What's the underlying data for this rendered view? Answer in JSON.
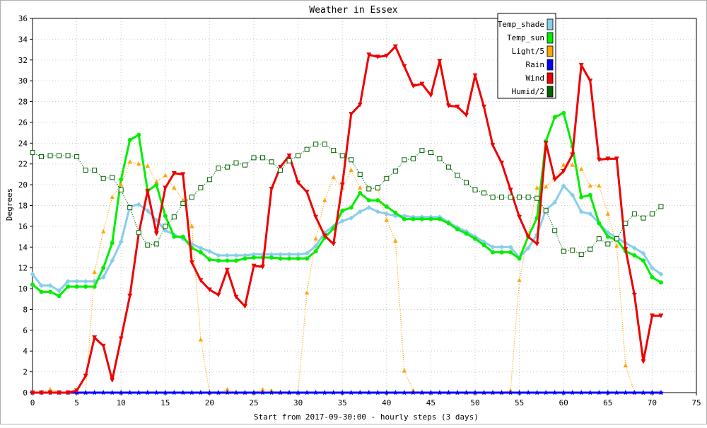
{
  "chart_data": {
    "type": "line",
    "title": "Weather in Essex",
    "xlabel": "Start from 2017-09-30:00 - hourly steps (3 days)",
    "ylabel": "Degrees",
    "xlim": [
      0,
      75
    ],
    "ylim": [
      0,
      36
    ],
    "xticks": [
      0,
      5,
      10,
      15,
      20,
      25,
      30,
      35,
      40,
      45,
      50,
      55,
      60,
      65,
      70,
      75
    ],
    "yticks": [
      0,
      2,
      4,
      6,
      8,
      10,
      12,
      14,
      16,
      18,
      20,
      22,
      24,
      26,
      28,
      30,
      32,
      34,
      36
    ],
    "grid": true,
    "legend_position": "top-right",
    "series": [
      {
        "name": "Temp_shade",
        "color": "#87ceeb",
        "marker": "diamond",
        "line": "solid",
        "values": [
          11.4,
          10.3,
          10.3,
          9.8,
          10.7,
          10.7,
          10.7,
          10.7,
          11.1,
          12.7,
          14.5,
          17.9,
          18.1,
          17.5,
          16.6,
          15.6,
          15.2,
          14.8,
          14.3,
          13.9,
          13.6,
          13.2,
          13.2,
          13.2,
          13.2,
          13.3,
          13.3,
          13.3,
          13.3,
          13.3,
          13.3,
          13.4,
          14.1,
          15.4,
          16.0,
          16.5,
          16.8,
          17.4,
          17.8,
          17.4,
          17.2,
          17.0,
          17.0,
          16.9,
          16.9,
          16.9,
          16.9,
          16.4,
          15.9,
          15.5,
          15.0,
          14.5,
          14.0,
          14.0,
          14.0,
          13.0,
          13.9,
          15.2,
          17.6,
          18.3,
          19.9,
          19.0,
          17.4,
          17.2,
          16.3,
          15.4,
          14.9,
          14.4,
          13.9,
          13.4,
          12.0,
          11.4
        ]
      },
      {
        "name": "Temp_sun",
        "color": "#00ee00",
        "marker": "circle",
        "line": "solid",
        "values": [
          10.4,
          9.7,
          9.7,
          9.3,
          10.2,
          10.2,
          10.2,
          10.2,
          12.0,
          14.4,
          20.5,
          24.3,
          24.8,
          19.4,
          20.0,
          17.0,
          15.0,
          15.0,
          13.9,
          13.5,
          12.8,
          12.7,
          12.7,
          12.7,
          12.9,
          13.0,
          13.0,
          13.0,
          12.9,
          12.9,
          12.9,
          12.9,
          13.6,
          14.9,
          15.8,
          17.5,
          17.8,
          19.2,
          18.5,
          18.5,
          17.9,
          17.3,
          16.7,
          16.7,
          16.7,
          16.7,
          16.7,
          16.3,
          15.7,
          15.3,
          14.8,
          14.2,
          13.5,
          13.5,
          13.5,
          12.9,
          15.0,
          16.8,
          24.2,
          26.5,
          26.9,
          23.7,
          18.8,
          19.0,
          16.3,
          15.0,
          14.7,
          13.6,
          13.2,
          12.7,
          11.1,
          10.6
        ]
      },
      {
        "name": "Light/5",
        "color": "#ffa500",
        "marker": "triangle-up",
        "line": "dotted",
        "values": [
          0,
          0,
          0.3,
          0,
          0,
          0,
          0,
          11.6,
          15.5,
          18.8,
          20.0,
          22.2,
          22.0,
          21.8,
          20.3,
          20.9,
          19.7,
          18.5,
          16.0,
          5.1,
          0,
          0,
          0.3,
          0,
          0,
          0,
          0.3,
          0.2,
          0,
          0,
          0,
          9.6,
          14.8,
          18.5,
          20.7,
          19.7,
          21.4,
          19.7,
          19.7,
          19.6,
          16.6,
          14.6,
          2.1,
          0.2,
          0,
          0,
          0,
          0,
          0,
          0,
          0,
          0,
          0,
          0,
          0.2,
          10.8,
          15.2,
          19.7,
          19.8,
          20.7,
          21.9,
          21.9,
          21.5,
          19.9,
          19.9,
          17.2,
          14.1,
          2.6,
          0,
          0,
          0,
          0
        ]
      },
      {
        "name": "Rain",
        "color": "#0000ff",
        "marker": "star",
        "line": "solid",
        "values": [
          0,
          0,
          0,
          0,
          0,
          0,
          0,
          0,
          0,
          0,
          0,
          0,
          0,
          0,
          0,
          0,
          0,
          0,
          0,
          0,
          0,
          0,
          0,
          0,
          0,
          0,
          0,
          0,
          0,
          0,
          0,
          0,
          0,
          0,
          0,
          0,
          0,
          0,
          0,
          0,
          0,
          0,
          0,
          0,
          0,
          0,
          0,
          0,
          0,
          0,
          0,
          0,
          0,
          0,
          0,
          0,
          0,
          0,
          0,
          0,
          0,
          0,
          0,
          0,
          0,
          0,
          0,
          0,
          0,
          0,
          0,
          0
        ]
      },
      {
        "name": "Wind",
        "color": "#ee0000",
        "marker": "triangle-down",
        "line": "solid",
        "values": [
          0,
          0,
          0,
          0,
          0,
          0.2,
          1.6,
          5.3,
          4.5,
          1.2,
          5.2,
          9.3,
          15.3,
          19.4,
          15.3,
          19.7,
          21.1,
          21.0,
          12.5,
          10.8,
          9.9,
          9.4,
          11.8,
          9.2,
          8.3,
          12.2,
          12.1,
          19.6,
          21.7,
          22.8,
          20.2,
          19.3,
          16.9,
          15.1,
          14.3,
          20.0,
          26.8,
          27.7,
          32.5,
          32.3,
          32.4,
          33.3,
          31.4,
          29.5,
          29.7,
          28.6,
          31.9,
          27.6,
          27.5,
          26.7,
          30.5,
          27.5,
          23.8,
          22.1,
          19.5,
          16.9,
          15.0,
          14.3,
          24.0,
          20.5,
          21.3,
          22.9,
          31.5,
          30.0,
          22.4,
          22.5,
          22.5,
          13.8,
          9.4,
          3.0,
          7.4,
          7.4
        ]
      },
      {
        "name": "Humid/2",
        "color": "#006400",
        "marker": "square",
        "line": "dotted",
        "values": [
          23.1,
          22.7,
          22.8,
          22.8,
          22.8,
          22.7,
          21.4,
          21.4,
          20.6,
          20.7,
          19.5,
          17.8,
          15.4,
          14.2,
          14.3,
          16.0,
          16.9,
          18.2,
          18.8,
          19.7,
          20.5,
          21.6,
          21.7,
          22.1,
          21.9,
          22.6,
          22.6,
          22.2,
          21.4,
          22.3,
          22.8,
          23.4,
          23.9,
          23.9,
          23.3,
          22.8,
          22.4,
          21.0,
          19.6,
          19.7,
          20.6,
          21.3,
          22.4,
          22.5,
          23.3,
          23.1,
          22.5,
          21.7,
          20.9,
          20.2,
          19.5,
          19.2,
          18.8,
          18.8,
          18.8,
          18.8,
          18.8,
          18.7,
          17.5,
          15.6,
          13.6,
          13.7,
          13.3,
          13.8,
          14.8,
          14.3,
          14.8,
          16.3,
          17.2,
          16.8,
          17.2,
          17.9
        ]
      }
    ]
  }
}
